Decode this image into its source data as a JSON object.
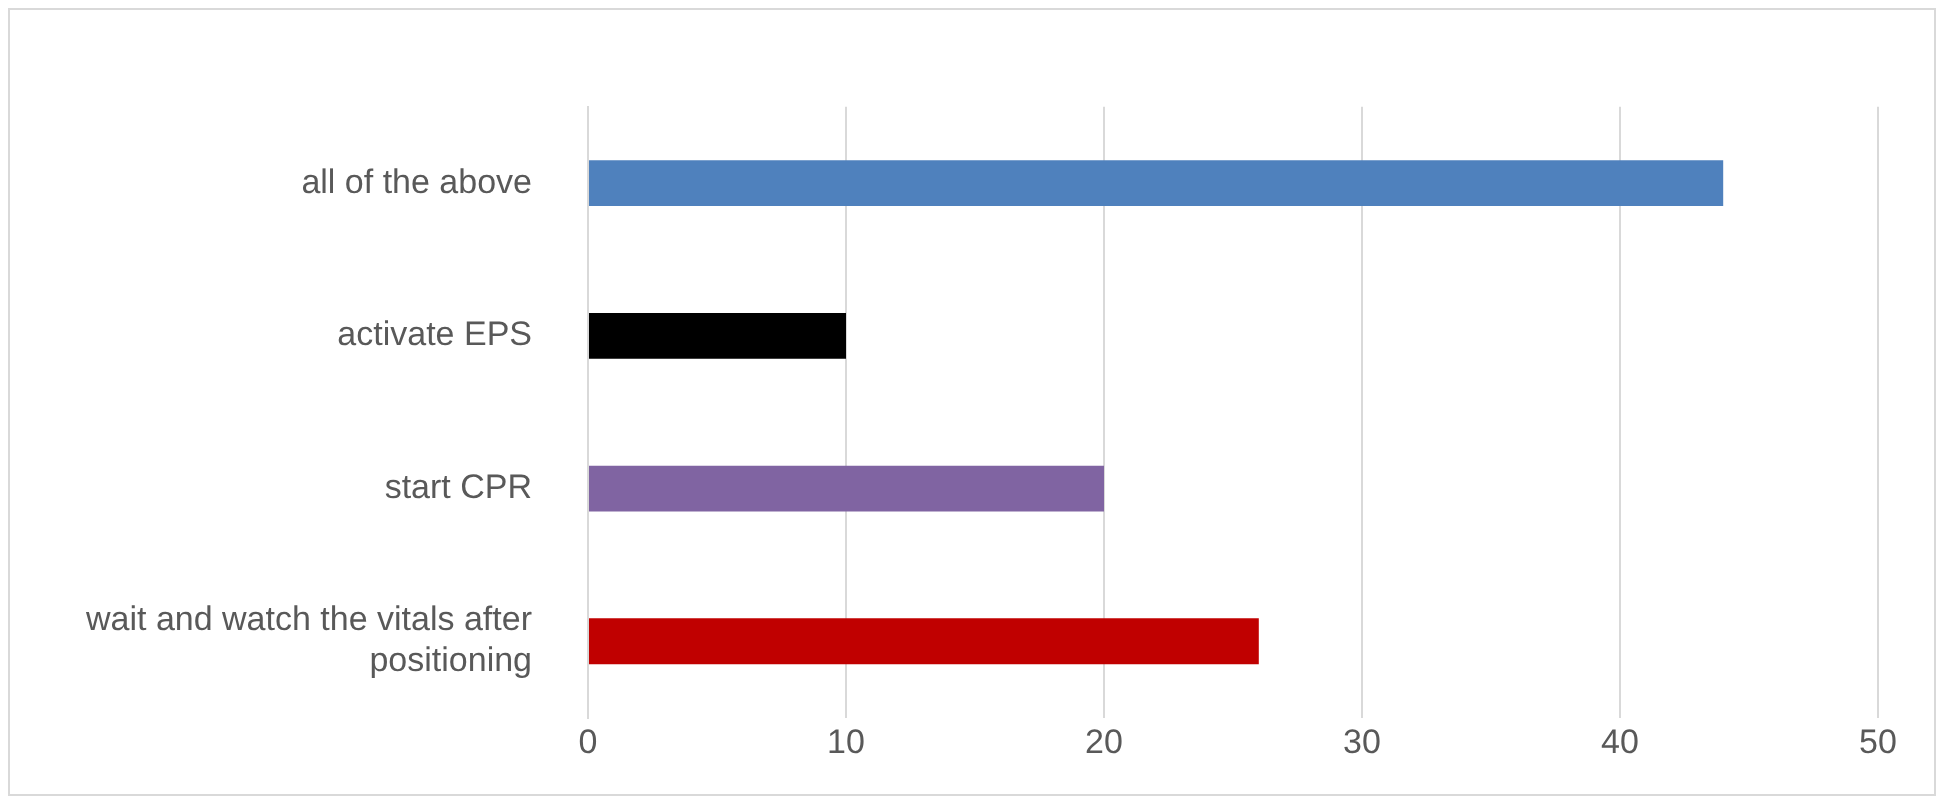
{
  "chart_data": {
    "type": "bar",
    "orientation": "horizontal",
    "categories": [
      "all of the above",
      "activate EPS",
      "start CPR",
      "wait and watch the vitals after positioning"
    ],
    "values": [
      44,
      10,
      20,
      26
    ],
    "colors": [
      "#4f81bd",
      "#000000",
      "#8064a2",
      "#c00000"
    ],
    "xlim": [
      0,
      50
    ],
    "xticks": [
      0,
      10,
      20,
      30,
      40,
      50
    ],
    "grid": "x",
    "legend": false
  }
}
